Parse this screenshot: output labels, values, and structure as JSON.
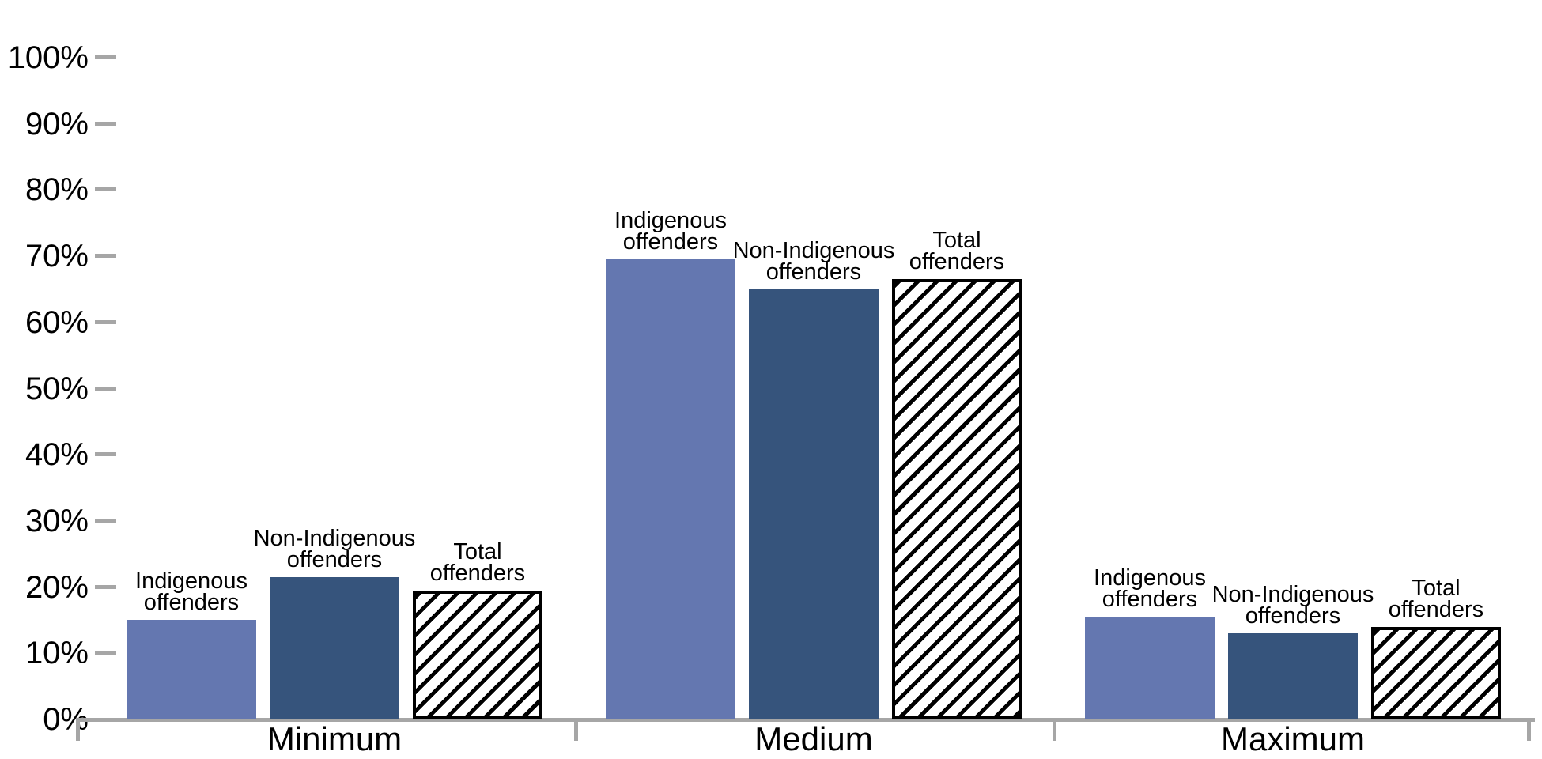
{
  "chart_data": {
    "type": "bar",
    "title": "",
    "xlabel": "",
    "ylabel": "",
    "categories": [
      "Minimum",
      "Medium",
      "Maximum"
    ],
    "series": [
      {
        "name": "Indigenous offenders",
        "label_lines": [
          "Indigenous",
          "offenders"
        ],
        "values": [
          15,
          69.5,
          15.5
        ],
        "color": "#6477B0",
        "pattern": "solid"
      },
      {
        "name": "Non-Indigenous offenders",
        "label_lines": [
          "Non-Indigenous",
          "offenders"
        ],
        "values": [
          21.5,
          65,
          13
        ],
        "color": "#36547C",
        "pattern": "solid"
      },
      {
        "name": "Total offenders",
        "label_lines": [
          "Total",
          "offenders"
        ],
        "values": [
          19.5,
          66.5,
          14
        ],
        "color": "#FFFFFF",
        "pattern": "diagonal-hatch",
        "hatch_color": "#000000"
      }
    ],
    "y_ticks": [
      "0%",
      "10%",
      "20%",
      "30%",
      "40%",
      "50%",
      "60%",
      "70%",
      "80%",
      "90%",
      "100%"
    ],
    "y_tick_step": 10,
    "ylim": [
      0,
      100
    ],
    "grid": false,
    "legend": "labels-above-each-bar",
    "axis_color": "#A6A6A6",
    "text_color": "#000000",
    "background_color": "#FFFFFF"
  }
}
